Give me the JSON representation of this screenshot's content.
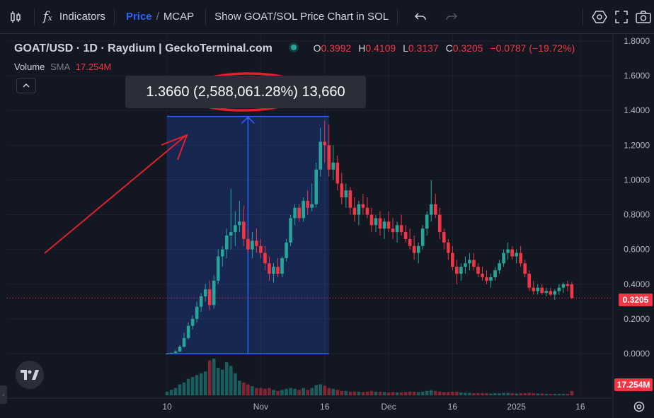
{
  "toolbar": {
    "indicators_label": "Indicators",
    "price_label": "Price",
    "slash": "/",
    "mcap_label": "MCAP",
    "show_sol_label": "Show GOAT/SOL Price Chart in SOL"
  },
  "legend": {
    "symbol": "GOAT/USD · 1D · Raydium | GeckoTerminal.com",
    "o_label": "O",
    "o_val": "0.3992",
    "h_label": "H",
    "h_val": "0.4109",
    "l_label": "L",
    "l_val": "0.3137",
    "c_label": "C",
    "c_val": "0.3205",
    "change": "−0.0787 (−19.72%)",
    "volume_label": "Volume",
    "sma_label": "SMA",
    "volume_val": "17.254M"
  },
  "measure": {
    "text": "1.3660 (2,588,061.28%) 13,660"
  },
  "price_tag": "0.3205",
  "volume_tag": "17.254M",
  "colors": {
    "up": "#26a69a",
    "down": "#f23645",
    "accent": "#2962ff",
    "background": "#131722"
  },
  "chart_data": {
    "type": "candlestick",
    "title": "GOAT/USD · 1D · Raydium | GeckoTerminal.com",
    "y_ticks": [
      "1.8000",
      "1.6000",
      "1.4000",
      "1.2000",
      "1.0000",
      "0.8000",
      "0.6000",
      "0.4000",
      "0.2000",
      "0.0000"
    ],
    "y_tick_values": [
      1.8,
      1.6,
      1.4,
      1.2,
      1.0,
      0.8,
      0.6,
      0.4,
      0.2,
      0.0
    ],
    "ylim": [
      -0.16,
      1.84
    ],
    "x_ticks": [
      "10",
      "Nov",
      "16",
      "Dec",
      "16",
      "2025",
      "16"
    ],
    "x_tick_days": [
      0,
      22,
      37,
      52,
      67,
      82,
      97
    ],
    "start_date": "2024-10-10",
    "last_close": 0.3205,
    "grid": true,
    "measure_range": {
      "from": 0.0,
      "to": 1.366,
      "change_pct": "2,588,061.28%",
      "bars": "13,660",
      "start_day": 0,
      "end_day": 38
    },
    "candles": [
      [
        0.0001,
        0.001,
        0.0001,
        0.0008,
        0.1
      ],
      [
        0.0008,
        0.005,
        0.0005,
        0.004,
        0.15
      ],
      [
        0.004,
        0.02,
        0.003,
        0.012,
        0.2
      ],
      [
        0.012,
        0.05,
        0.01,
        0.04,
        0.3
      ],
      [
        0.04,
        0.12,
        0.035,
        0.09,
        0.35
      ],
      [
        0.09,
        0.18,
        0.08,
        0.16,
        0.45
      ],
      [
        0.16,
        0.22,
        0.14,
        0.2,
        0.5
      ],
      [
        0.2,
        0.3,
        0.18,
        0.27,
        0.55
      ],
      [
        0.27,
        0.35,
        0.24,
        0.33,
        0.6
      ],
      [
        0.33,
        0.4,
        0.3,
        0.37,
        0.65
      ],
      [
        0.37,
        0.42,
        0.25,
        0.28,
        0.95
      ],
      [
        0.28,
        0.45,
        0.26,
        0.42,
        1.0
      ],
      [
        0.42,
        0.6,
        0.4,
        0.56,
        0.75
      ],
      [
        0.56,
        0.62,
        0.5,
        0.6,
        0.7
      ],
      [
        0.6,
        0.72,
        0.55,
        0.68,
        0.9
      ],
      [
        0.68,
        0.95,
        0.6,
        0.7,
        0.8
      ],
      [
        0.7,
        0.82,
        0.62,
        0.74,
        0.6
      ],
      [
        0.74,
        0.88,
        0.7,
        0.76,
        0.4
      ],
      [
        0.76,
        0.85,
        0.62,
        0.66,
        0.35
      ],
      [
        0.66,
        0.72,
        0.58,
        0.6,
        0.3
      ],
      [
        0.6,
        0.7,
        0.55,
        0.65,
        0.25
      ],
      [
        0.65,
        0.72,
        0.58,
        0.62,
        0.2
      ],
      [
        0.62,
        0.66,
        0.55,
        0.58,
        0.2
      ],
      [
        0.58,
        0.62,
        0.48,
        0.52,
        0.18
      ],
      [
        0.52,
        0.56,
        0.42,
        0.46,
        0.2
      ],
      [
        0.46,
        0.52,
        0.41,
        0.5,
        0.15
      ],
      [
        0.5,
        0.55,
        0.44,
        0.46,
        0.12
      ],
      [
        0.46,
        0.56,
        0.44,
        0.55,
        0.15
      ],
      [
        0.55,
        0.66,
        0.53,
        0.64,
        0.18
      ],
      [
        0.64,
        0.8,
        0.62,
        0.78,
        0.2
      ],
      [
        0.78,
        0.86,
        0.74,
        0.84,
        0.18
      ],
      [
        0.84,
        0.86,
        0.76,
        0.78,
        0.15
      ],
      [
        0.78,
        0.9,
        0.76,
        0.88,
        0.2
      ],
      [
        0.88,
        0.94,
        0.8,
        0.84,
        0.15
      ],
      [
        0.84,
        0.98,
        0.82,
        0.86,
        0.2
      ],
      [
        0.86,
        1.1,
        0.84,
        1.06,
        0.28
      ],
      [
        1.06,
        1.3,
        1.02,
        1.22,
        0.3
      ],
      [
        1.22,
        1.34,
        1.1,
        1.2,
        0.26
      ],
      [
        1.2,
        1.32,
        1.02,
        1.06,
        0.2
      ],
      [
        1.06,
        1.2,
        1.0,
        1.1,
        0.18
      ],
      [
        1.1,
        1.14,
        0.94,
        0.98,
        0.15
      ],
      [
        0.98,
        1.04,
        0.86,
        0.9,
        0.12
      ],
      [
        0.9,
        0.98,
        0.84,
        0.94,
        0.12
      ],
      [
        0.94,
        0.96,
        0.8,
        0.84,
        0.1
      ],
      [
        0.84,
        0.9,
        0.76,
        0.8,
        0.1
      ],
      [
        0.8,
        0.88,
        0.74,
        0.86,
        0.1
      ],
      [
        0.86,
        0.92,
        0.8,
        0.84,
        0.09
      ],
      [
        0.84,
        0.9,
        0.78,
        0.8,
        0.1
      ],
      [
        0.8,
        0.84,
        0.7,
        0.74,
        0.12
      ],
      [
        0.74,
        0.8,
        0.7,
        0.78,
        0.1
      ],
      [
        0.78,
        0.82,
        0.68,
        0.72,
        0.1
      ],
      [
        0.72,
        0.78,
        0.66,
        0.76,
        0.09
      ],
      [
        0.76,
        0.82,
        0.7,
        0.72,
        0.08
      ],
      [
        0.72,
        0.78,
        0.66,
        0.7,
        0.09
      ],
      [
        0.7,
        0.76,
        0.64,
        0.74,
        0.08
      ],
      [
        0.74,
        0.8,
        0.68,
        0.7,
        0.08
      ],
      [
        0.7,
        0.74,
        0.64,
        0.66,
        0.09
      ],
      [
        0.66,
        0.72,
        0.6,
        0.62,
        0.1
      ],
      [
        0.62,
        0.68,
        0.54,
        0.58,
        0.1
      ],
      [
        0.58,
        0.64,
        0.52,
        0.62,
        0.09
      ],
      [
        0.62,
        0.74,
        0.6,
        0.72,
        0.1
      ],
      [
        0.72,
        0.82,
        0.68,
        0.8,
        0.12
      ],
      [
        0.8,
        1.0,
        0.76,
        0.86,
        0.14
      ],
      [
        0.86,
        0.92,
        0.78,
        0.8,
        0.12
      ],
      [
        0.8,
        0.84,
        0.66,
        0.7,
        0.1
      ],
      [
        0.7,
        0.72,
        0.6,
        0.64,
        0.09
      ],
      [
        0.64,
        0.66,
        0.54,
        0.58,
        0.09
      ],
      [
        0.58,
        0.62,
        0.48,
        0.5,
        0.1
      ],
      [
        0.5,
        0.54,
        0.4,
        0.46,
        0.1
      ],
      [
        0.46,
        0.52,
        0.42,
        0.5,
        0.08
      ],
      [
        0.5,
        0.56,
        0.46,
        0.52,
        0.07
      ],
      [
        0.52,
        0.58,
        0.48,
        0.54,
        0.07
      ],
      [
        0.54,
        0.58,
        0.48,
        0.5,
        0.06
      ],
      [
        0.5,
        0.52,
        0.44,
        0.46,
        0.06
      ],
      [
        0.46,
        0.5,
        0.42,
        0.44,
        0.06
      ],
      [
        0.44,
        0.48,
        0.4,
        0.42,
        0.06
      ],
      [
        0.42,
        0.46,
        0.38,
        0.44,
        0.05
      ],
      [
        0.44,
        0.5,
        0.42,
        0.48,
        0.06
      ],
      [
        0.48,
        0.54,
        0.46,
        0.52,
        0.06
      ],
      [
        0.52,
        0.6,
        0.5,
        0.58,
        0.07
      ],
      [
        0.58,
        0.64,
        0.54,
        0.6,
        0.07
      ],
      [
        0.6,
        0.62,
        0.54,
        0.56,
        0.06
      ],
      [
        0.56,
        0.6,
        0.52,
        0.58,
        0.05
      ],
      [
        0.58,
        0.62,
        0.5,
        0.52,
        0.06
      ],
      [
        0.52,
        0.54,
        0.44,
        0.46,
        0.06
      ],
      [
        0.46,
        0.48,
        0.36,
        0.38,
        0.07
      ],
      [
        0.38,
        0.42,
        0.34,
        0.36,
        0.06
      ],
      [
        0.36,
        0.4,
        0.34,
        0.38,
        0.05
      ],
      [
        0.38,
        0.4,
        0.34,
        0.35,
        0.05
      ],
      [
        0.35,
        0.38,
        0.33,
        0.36,
        0.04
      ],
      [
        0.36,
        0.38,
        0.33,
        0.34,
        0.04
      ],
      [
        0.34,
        0.37,
        0.31,
        0.36,
        0.04
      ],
      [
        0.36,
        0.4,
        0.34,
        0.38,
        0.04
      ],
      [
        0.38,
        0.41,
        0.35,
        0.4,
        0.04
      ],
      [
        0.4,
        0.42,
        0.36,
        0.39,
        0.04
      ],
      [
        0.3992,
        0.4109,
        0.3137,
        0.3205,
        0.12
      ]
    ]
  }
}
